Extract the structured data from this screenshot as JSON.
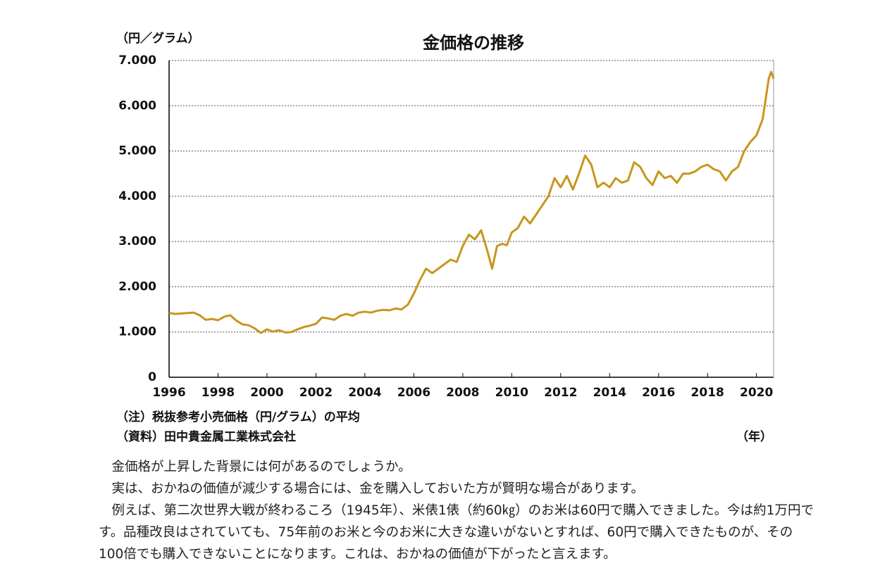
{
  "chart_data": {
    "type": "line",
    "title": "金価格の推移",
    "y_label": "（円／グラム）",
    "x_label": "（年）",
    "notes": [
      "（注）税抜参考小売価格（円/グラム）の平均",
      "（資料）田中貴金属工業株式会社"
    ],
    "x": [
      1996.0,
      1996.25,
      1996.5,
      1996.75,
      1997.0,
      1997.25,
      1997.5,
      1997.75,
      1998.0,
      1998.25,
      1998.5,
      1998.75,
      1999.0,
      1999.25,
      1999.5,
      1999.75,
      2000.0,
      2000.25,
      2000.5,
      2000.75,
      2001.0,
      2001.25,
      2001.5,
      2001.75,
      2002.0,
      2002.25,
      2002.5,
      2002.75,
      2003.0,
      2003.25,
      2003.5,
      2003.75,
      2004.0,
      2004.25,
      2004.5,
      2004.75,
      2005.0,
      2005.25,
      2005.5,
      2005.75,
      2006.0,
      2006.25,
      2006.5,
      2006.75,
      2007.0,
      2007.25,
      2007.5,
      2007.75,
      2008.0,
      2008.25,
      2008.5,
      2008.75,
      2009.0,
      2009.2,
      2009.4,
      2009.6,
      2009.8,
      2010.0,
      2010.25,
      2010.5,
      2010.75,
      2011.0,
      2011.25,
      2011.5,
      2011.75,
      2012.0,
      2012.25,
      2012.5,
      2012.75,
      2013.0,
      2013.25,
      2013.5,
      2013.75,
      2014.0,
      2014.25,
      2014.5,
      2014.75,
      2015.0,
      2015.25,
      2015.5,
      2015.75,
      2016.0,
      2016.25,
      2016.5,
      2016.75,
      2017.0,
      2017.25,
      2017.5,
      2017.75,
      2018.0,
      2018.25,
      2018.5,
      2018.75,
      2019.0,
      2019.25,
      2019.5,
      2019.75,
      2020.0,
      2020.25,
      2020.5,
      2020.6,
      2020.7
    ],
    "values": [
      1420,
      1400,
      1410,
      1420,
      1430,
      1370,
      1270,
      1290,
      1260,
      1340,
      1370,
      1250,
      1170,
      1150,
      1080,
      980,
      1060,
      1010,
      1040,
      990,
      1000,
      1060,
      1110,
      1140,
      1180,
      1320,
      1300,
      1270,
      1360,
      1400,
      1360,
      1430,
      1450,
      1430,
      1470,
      1490,
      1480,
      1520,
      1500,
      1600,
      1850,
      2150,
      2400,
      2300,
      2400,
      2500,
      2600,
      2550,
      2900,
      3150,
      3050,
      3250,
      2800,
      2400,
      2900,
      2950,
      2920,
      3200,
      3300,
      3550,
      3400,
      3600,
      3800,
      4000,
      4400,
      4200,
      4450,
      4150,
      4500,
      4900,
      4700,
      4200,
      4300,
      4200,
      4400,
      4300,
      4350,
      4750,
      4650,
      4400,
      4250,
      4550,
      4400,
      4450,
      4300,
      4500,
      4500,
      4550,
      4650,
      4700,
      4600,
      4550,
      4350,
      4550,
      4650,
      5000,
      5200,
      5350,
      5700,
      6600,
      6750,
      6600
    ],
    "color": "#c8961e",
    "xlim": [
      1996,
      2020.7
    ],
    "xticks": [
      1996,
      1998,
      2000,
      2002,
      2004,
      2006,
      2008,
      2010,
      2012,
      2014,
      2016,
      2018,
      2020
    ],
    "ylim": [
      0,
      7000
    ],
    "yticks": [
      0,
      {
        "value": 1000,
        "label": "1.000"
      },
      {
        "value": 2000,
        "label": "2.000"
      },
      {
        "value": 3000,
        "label": "3.000"
      },
      {
        "value": 4000,
        "label": "4.000"
      },
      {
        "value": 5000,
        "label": "5.000"
      },
      {
        "value": 6000,
        "label": "6.000"
      },
      {
        "value": 7000,
        "label": "7.000"
      }
    ],
    "grid": true
  },
  "article": {
    "paragraphs": [
      "金価格が上昇した背景には何があるのでしょうか。",
      "実は、おかねの価値が減少する場合には、金を購入しておいた方が賢明な場合があります。",
      "例えば、第二次世界大戦が終わるころ（1945年）、米俵1俵（約60㎏）のお米は60円で購入できました。今は約1万円です。品種改良はされていても、75年前のお米と今のお米に大きな違いがないとすれば、60円で購入できたものが、その100倍でも購入できないことになります。これは、おかねの価値が下がったと言えます。"
    ]
  }
}
